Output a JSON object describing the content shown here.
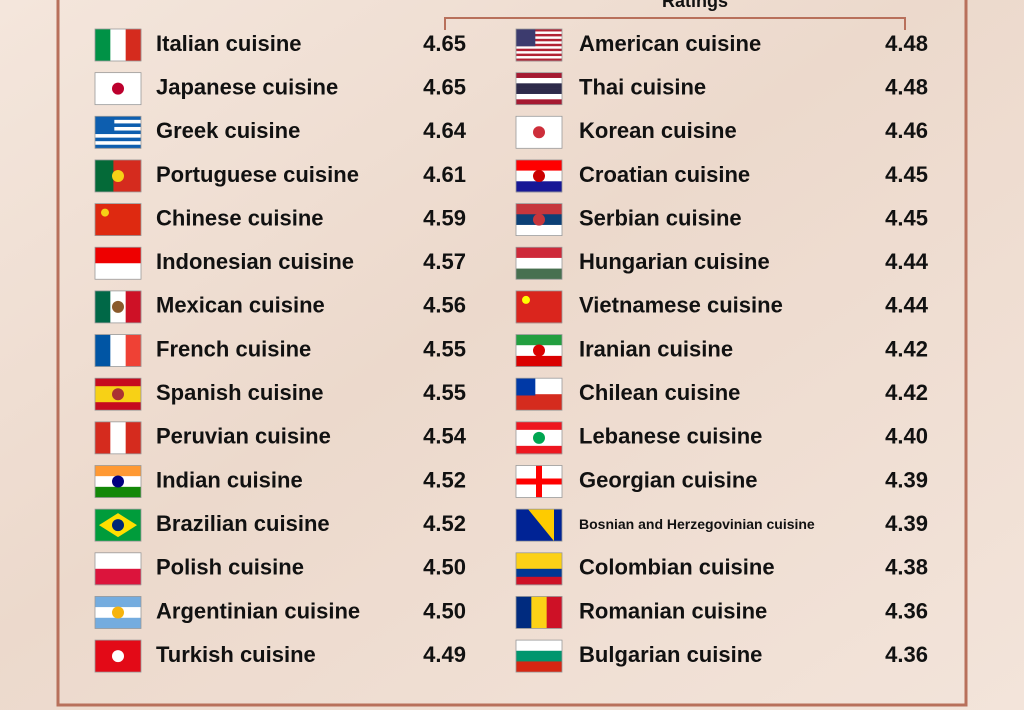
{
  "header": {
    "title": "Ratings"
  },
  "columns": [
    {
      "rows": [
        {
          "name": "Italian cuisine",
          "rating": "4.65"
        },
        {
          "name": "Japanese cuisine",
          "rating": "4.65"
        },
        {
          "name": "Greek cuisine",
          "rating": "4.64"
        },
        {
          "name": "Portuguese cuisine",
          "rating": "4.61"
        },
        {
          "name": "Chinese cuisine",
          "rating": "4.59"
        },
        {
          "name": "Indonesian cuisine",
          "rating": "4.57"
        },
        {
          "name": "Mexican cuisine",
          "rating": "4.56"
        },
        {
          "name": "French cuisine",
          "rating": "4.55"
        },
        {
          "name": "Spanish cuisine",
          "rating": "4.55"
        },
        {
          "name": "Peruvian cuisine",
          "rating": "4.54"
        },
        {
          "name": "Indian cuisine",
          "rating": "4.52"
        },
        {
          "name": "Brazilian cuisine",
          "rating": "4.52"
        },
        {
          "name": "Polish cuisine",
          "rating": "4.50"
        },
        {
          "name": "Argentinian cuisine",
          "rating": "4.50"
        },
        {
          "name": "Turkish cuisine",
          "rating": "4.49"
        }
      ]
    },
    {
      "rows": [
        {
          "name": "American cuisine",
          "rating": "4.48"
        },
        {
          "name": "Thai cuisine",
          "rating": "4.48"
        },
        {
          "name": "Korean cuisine",
          "rating": "4.46"
        },
        {
          "name": "Croatian cuisine",
          "rating": "4.45"
        },
        {
          "name": "Serbian cuisine",
          "rating": "4.45"
        },
        {
          "name": "Hungarian cuisine",
          "rating": "4.44"
        },
        {
          "name": "Vietnamese cuisine",
          "rating": "4.44"
        },
        {
          "name": "Iranian cuisine",
          "rating": "4.42"
        },
        {
          "name": "Chilean cuisine",
          "rating": "4.42"
        },
        {
          "name": "Lebanese cuisine",
          "rating": "4.40"
        },
        {
          "name": "Georgian cuisine",
          "rating": "4.39"
        },
        {
          "name": "Bosnian and Herzegovinian cuisine",
          "rating": "4.39"
        },
        {
          "name": "Colombian cuisine",
          "rating": "4.38"
        },
        {
          "name": "Romanian cuisine",
          "rating": "4.36"
        },
        {
          "name": "Bulgarian cuisine",
          "rating": "4.36"
        }
      ]
    }
  ]
}
